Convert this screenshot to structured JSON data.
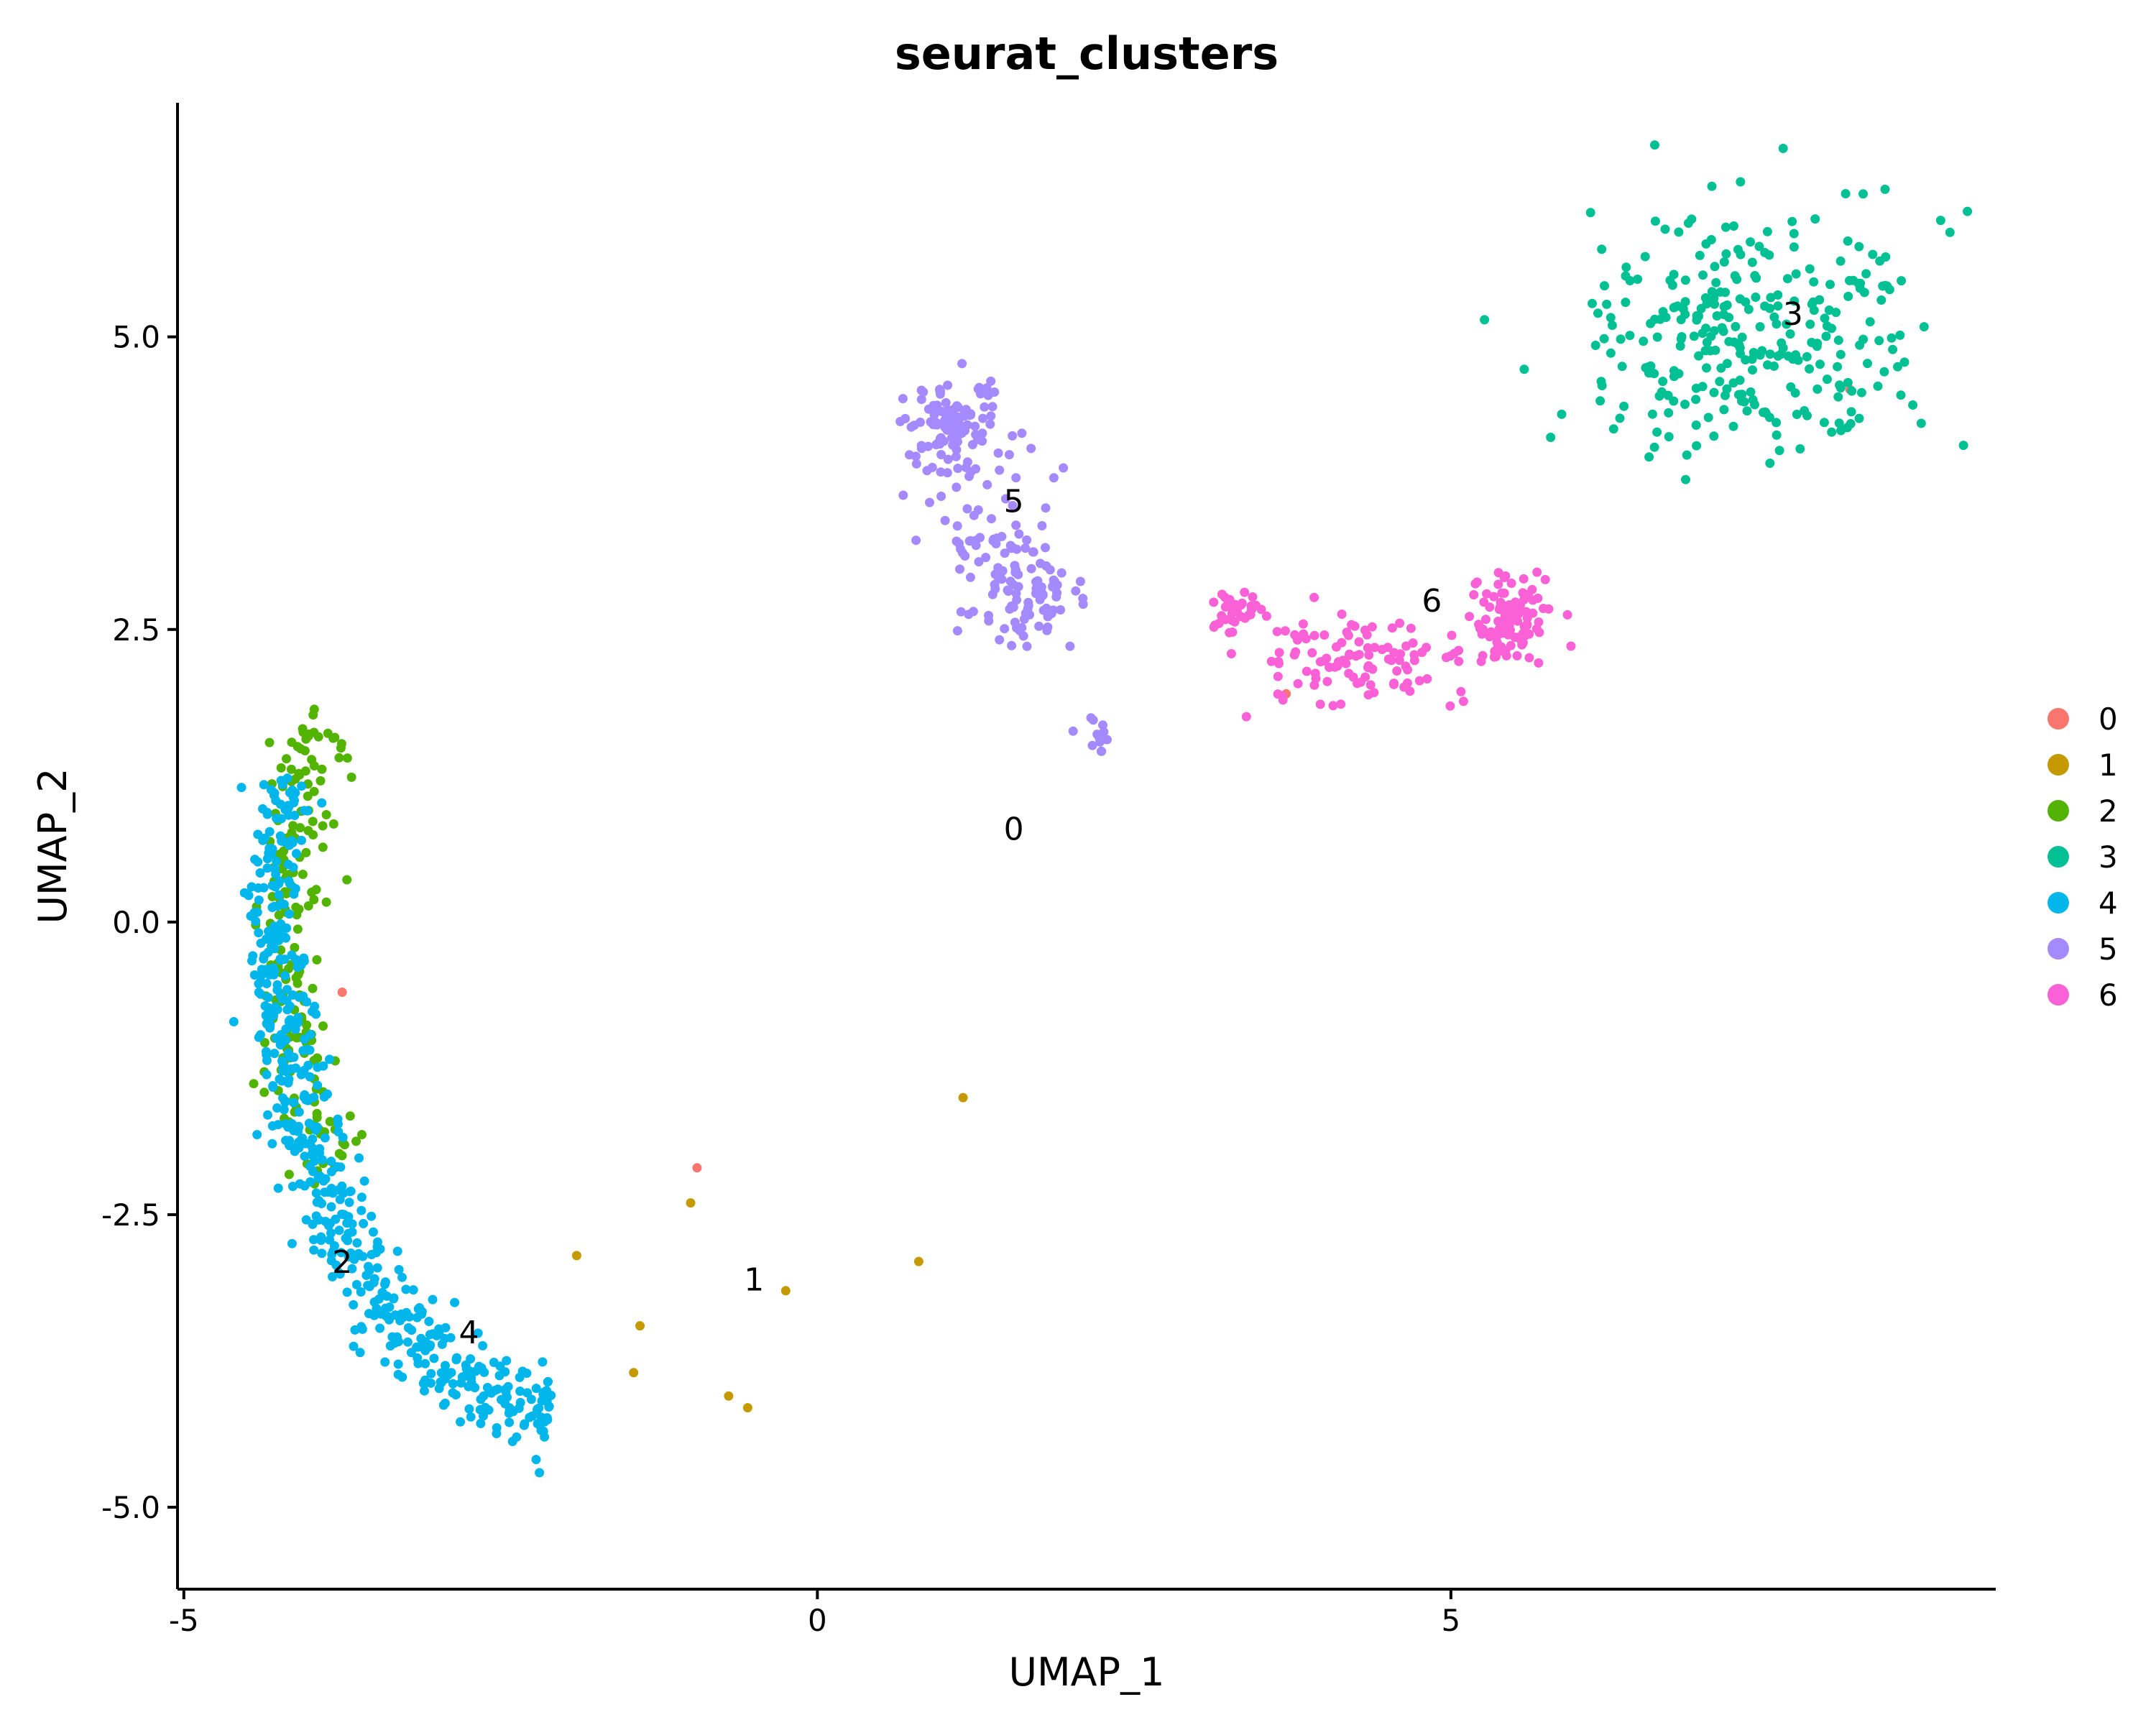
{
  "chart_data": {
    "type": "scatter",
    "title": "seurat_clusters",
    "xlabel": "UMAP_1",
    "ylabel": "UMAP_2",
    "xlim": [
      -5.05,
      9.3
    ],
    "ylim": [
      -5.7,
      7.0
    ],
    "x_ticks": [
      -5,
      0,
      5
    ],
    "x_tick_labels": [
      "-5",
      "0",
      "5"
    ],
    "y_ticks": [
      -5,
      -2.5,
      0,
      2.5,
      5
    ],
    "y_tick_labels": [
      "-5.0",
      "-2.5",
      "0.0",
      "2.5",
      "5.0"
    ],
    "grid": false,
    "legend_position": "right",
    "legend": [
      {
        "label": "0",
        "color": "#F8766D"
      },
      {
        "label": "1",
        "color": "#C49A00"
      },
      {
        "label": "2",
        "color": "#53B400"
      },
      {
        "label": "3",
        "color": "#00C094"
      },
      {
        "label": "4",
        "color": "#00B6EB"
      },
      {
        "label": "5",
        "color": "#A58AFF"
      },
      {
        "label": "6",
        "color": "#FB61D7"
      }
    ],
    "cluster_labels": [
      {
        "text": "5",
        "x": 1.55,
        "y": 3.6
      },
      {
        "text": "0",
        "x": 1.55,
        "y": 0.8
      },
      {
        "text": "6",
        "x": 4.85,
        "y": 2.75
      },
      {
        "text": "3",
        "x": 7.7,
        "y": 5.2
      },
      {
        "text": "2",
        "x": -3.75,
        "y": -2.9
      },
      {
        "text": "4",
        "x": -2.75,
        "y": -3.5
      },
      {
        "text": "1",
        "x": -0.5,
        "y": -3.05
      }
    ],
    "series": [
      {
        "name": "0",
        "color": "#F8766D",
        "points": [
          [
            -3.75,
            -0.6
          ],
          [
            -0.95,
            -2.1
          ],
          [
            3.7,
            1.95
          ],
          [
            8.15,
            4.55
          ]
        ]
      },
      {
        "name": "1",
        "color": "#C49A00",
        "points": [
          [
            1.15,
            -1.5
          ],
          [
            -1.0,
            -2.4
          ],
          [
            0.8,
            -2.9
          ],
          [
            -0.25,
            -3.15
          ],
          [
            -1.9,
            -2.85
          ],
          [
            -1.4,
            -3.45
          ],
          [
            -1.45,
            -3.85
          ],
          [
            -0.7,
            -4.05
          ],
          [
            -0.55,
            -4.15
          ]
        ]
      },
      {
        "name": "2",
        "color": "#53B400"
      },
      {
        "name": "3",
        "color": "#00C094"
      },
      {
        "name": "4",
        "color": "#00B6EB"
      },
      {
        "name": "5",
        "color": "#A58AFF"
      },
      {
        "name": "6",
        "color": "#FB61D7"
      }
    ]
  }
}
